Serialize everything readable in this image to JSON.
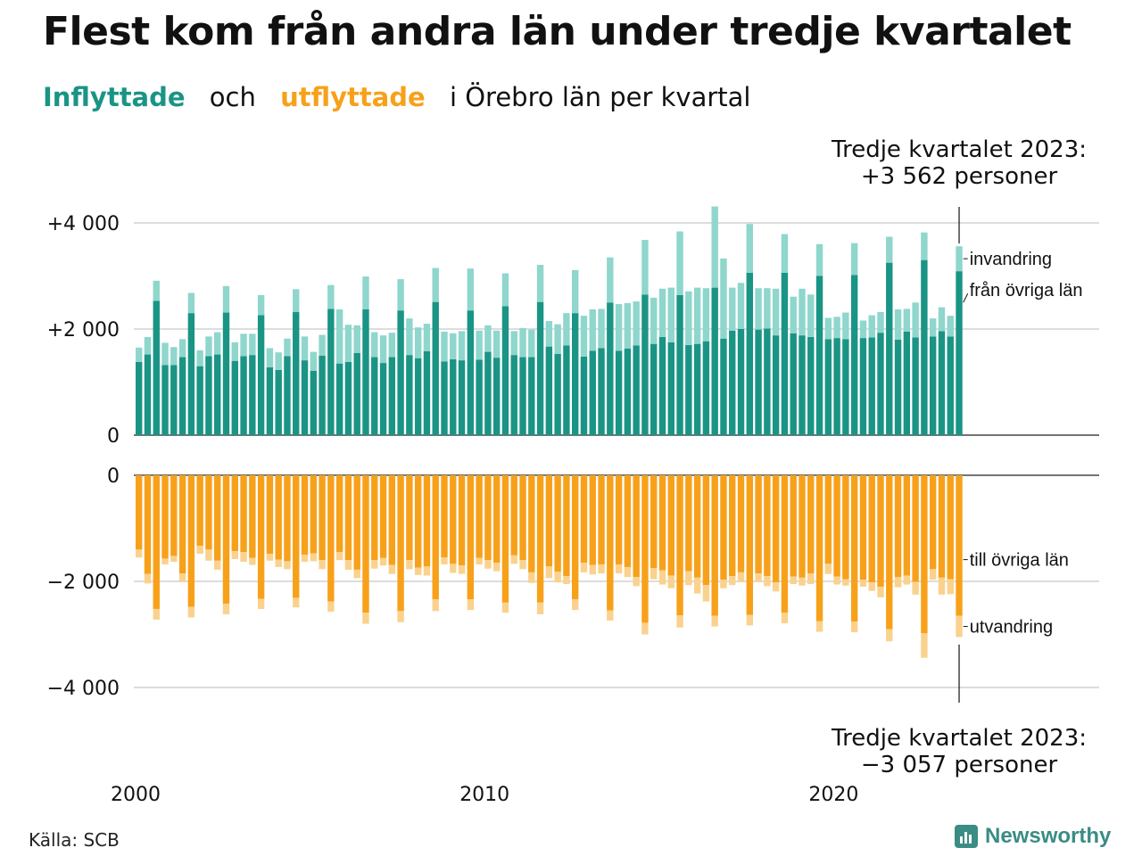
{
  "title": "Flest kom från andra län under tredje kvartalet",
  "subtitle": {
    "part1": "Inflyttade",
    "part2": "och",
    "part3": "utflyttade",
    "part4": "i Örebro län per kvartal"
  },
  "source": "Källa: SCB",
  "brand": "Newsworthy",
  "colors": {
    "in_dark": "#1a9485",
    "in_light": "#8fd6cd",
    "out_dark": "#f7a11b",
    "out_light": "#fad28e",
    "text_teal": "#1a9485",
    "text_orange": "#f7a11b",
    "brand": "#3a8c84"
  },
  "chart_data": {
    "type": "bar",
    "stacked": true,
    "xlabel": "",
    "ylabel": "",
    "x_ticks": [
      "2000",
      "2010",
      "2020"
    ],
    "categories_start": "2000 Q1",
    "categories_end": "2023 Q3",
    "top_panel": {
      "ylim": [
        0,
        4300
      ],
      "y_ticks": [
        0,
        2000,
        4000
      ],
      "y_tick_labels": [
        "0",
        "+2 000",
        "+4 000"
      ],
      "series": [
        {
          "name": "från övriga län",
          "values": [
            1380,
            1520,
            2530,
            1320,
            1320,
            1470,
            2300,
            1300,
            1490,
            1520,
            2310,
            1400,
            1490,
            1510,
            2260,
            1280,
            1230,
            1490,
            2320,
            1410,
            1210,
            1500,
            2380,
            1350,
            1380,
            1550,
            2370,
            1470,
            1360,
            1470,
            2350,
            1510,
            1450,
            1580,
            2510,
            1390,
            1430,
            1410,
            2350,
            1420,
            1570,
            1460,
            2430,
            1510,
            1470,
            1470,
            2510,
            1670,
            1530,
            1690,
            2300,
            1480,
            1590,
            1640,
            2500,
            1590,
            1630,
            1690,
            2650,
            1720,
            1850,
            1750,
            2640,
            1700,
            1720,
            1770,
            2780,
            1820,
            1970,
            2000,
            3060,
            1990,
            2010,
            1880,
            3060,
            1920,
            1880,
            1850,
            3000,
            1810,
            1830,
            1810,
            3020,
            1830,
            1840,
            1930,
            3250,
            1800,
            1950,
            1840,
            3300,
            1860,
            1960,
            1860,
            3090
          ]
        },
        {
          "name": "invandring",
          "values": [
            270,
            330,
            380,
            420,
            340,
            340,
            380,
            300,
            370,
            420,
            500,
            350,
            420,
            400,
            380,
            360,
            330,
            330,
            430,
            450,
            360,
            390,
            450,
            1020,
            700,
            520,
            620,
            470,
            520,
            460,
            590,
            690,
            580,
            520,
            640,
            560,
            490,
            550,
            790,
            550,
            500,
            510,
            620,
            450,
            550,
            520,
            700,
            480,
            560,
            610,
            810,
            770,
            780,
            740,
            850,
            880,
            860,
            830,
            1030,
            870,
            910,
            1030,
            1200,
            1010,
            1060,
            1000,
            1530,
            1510,
            810,
            870,
            920,
            780,
            760,
            880,
            730,
            690,
            880,
            800,
            600,
            400,
            400,
            500,
            600,
            330,
            420,
            390,
            490,
            570,
            430,
            660,
            520,
            340,
            450,
            390,
            470
          ]
        }
      ]
    },
    "bottom_panel": {
      "ylim": [
        -4300,
        0
      ],
      "y_ticks": [
        0,
        -2000,
        -4000
      ],
      "y_tick_labels": [
        "0",
        "−2 000",
        "−4 000"
      ],
      "series": [
        {
          "name": "till övriga län",
          "values": [
            -1400,
            -1860,
            -2520,
            -1570,
            -1520,
            -1850,
            -2480,
            -1330,
            -1400,
            -1610,
            -2420,
            -1430,
            -1450,
            -1560,
            -2330,
            -1480,
            -1590,
            -1620,
            -2310,
            -1500,
            -1470,
            -1600,
            -2380,
            -1450,
            -1600,
            -1780,
            -2590,
            -1600,
            -1560,
            -1690,
            -2560,
            -1600,
            -1740,
            -1720,
            -2340,
            -1550,
            -1670,
            -1700,
            -2340,
            -1560,
            -1600,
            -1650,
            -2400,
            -1510,
            -1600,
            -1830,
            -2400,
            -1720,
            -1820,
            -1900,
            -2340,
            -1650,
            -1690,
            -1680,
            -2550,
            -1680,
            -1730,
            -1920,
            -2780,
            -1750,
            -1790,
            -1890,
            -2640,
            -1810,
            -1930,
            -2070,
            -2650,
            -1970,
            -1900,
            -1830,
            -2630,
            -1850,
            -1900,
            -2020,
            -2590,
            -1910,
            -1930,
            -1850,
            -2750,
            -1670,
            -1910,
            -1960,
            -2760,
            -1970,
            -2020,
            -2100,
            -2900,
            -1920,
            -1890,
            -2010,
            -2980,
            -1770,
            -1930,
            -1960,
            -2650
          ]
        },
        {
          "name": "utvandring",
          "values": [
            -150,
            -180,
            -200,
            -110,
            -110,
            -160,
            -200,
            -150,
            -210,
            -170,
            -200,
            -150,
            -180,
            -130,
            -190,
            -130,
            -140,
            -150,
            -180,
            -130,
            -150,
            -170,
            -190,
            -150,
            -180,
            -160,
            -210,
            -160,
            -140,
            -170,
            -210,
            -170,
            -140,
            -170,
            -220,
            -130,
            -170,
            -160,
            -200,
            -120,
            -160,
            -160,
            -190,
            -160,
            -170,
            -200,
            -220,
            -220,
            -200,
            -150,
            -200,
            -180,
            -180,
            -170,
            -190,
            -170,
            -190,
            -170,
            -220,
            -210,
            -270,
            -240,
            -230,
            -260,
            -300,
            -310,
            -200,
            -160,
            -170,
            -180,
            -200,
            -160,
            -190,
            -170,
            -200,
            -140,
            -150,
            -200,
            -200,
            -190,
            -150,
            -120,
            -200,
            -130,
            -160,
            -200,
            -230,
            -190,
            -170,
            -240,
            -460,
            -200,
            -320,
            -280,
            -400
          ]
        }
      ]
    },
    "series_labels": [
      "invandring",
      "från övriga län",
      "till övriga län",
      "utvandring"
    ],
    "annotations": [
      {
        "line1": "Tredje kvartalet 2023:",
        "line2": "+3 562 personer",
        "value": 3562,
        "panel": "top"
      },
      {
        "line1": "Tredje kvartalet 2023:",
        "line2": "−3 057 personer",
        "value": -3057,
        "panel": "bottom"
      }
    ]
  }
}
